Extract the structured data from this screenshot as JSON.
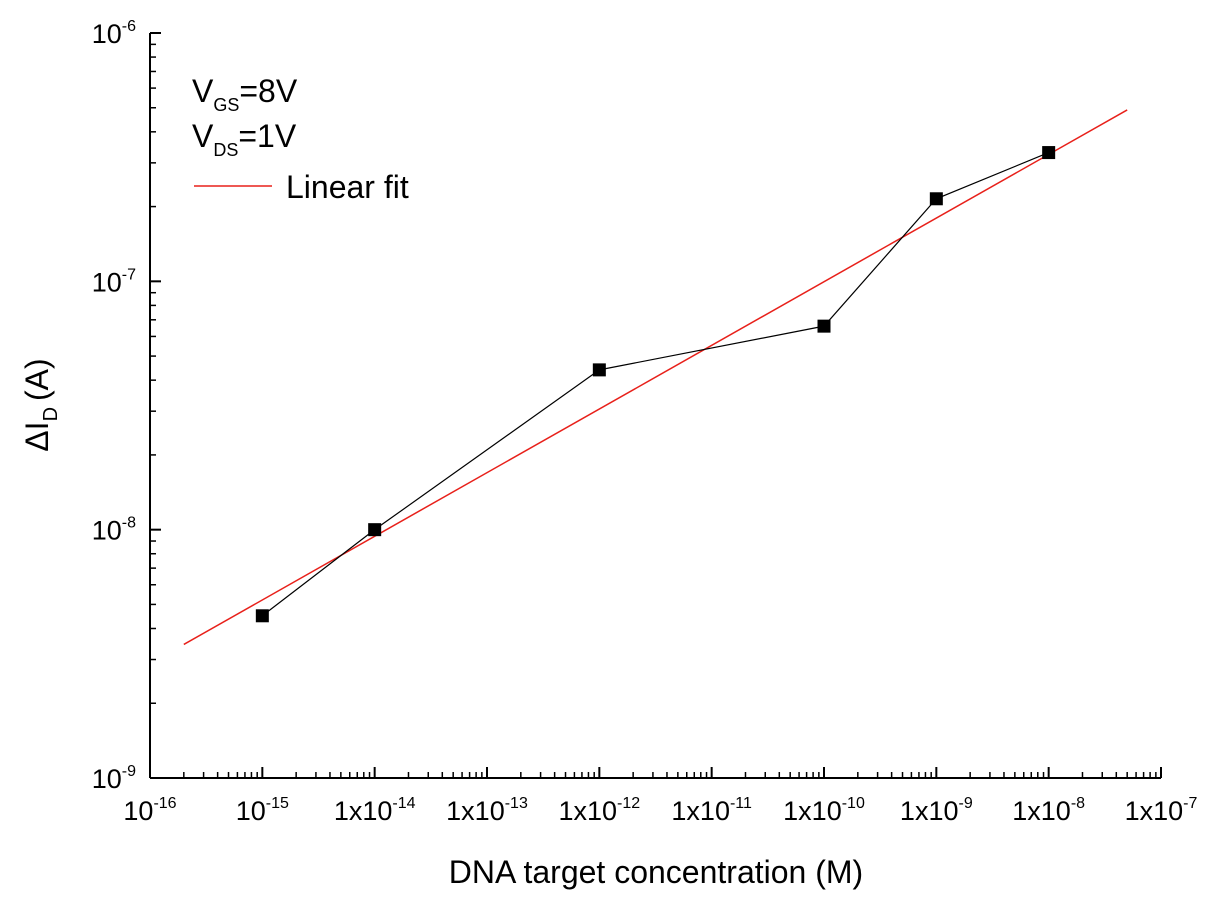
{
  "chart_data": {
    "type": "scatter",
    "xlabel": "DNA target concentration (M)",
    "ylabel_main": "ΔI",
    "ylabel_sub": "D",
    "ylabel_unit": "(A)",
    "x_scale": "log",
    "y_scale": "log",
    "xlim": [
      1e-16,
      1e-07
    ],
    "ylim": [
      1e-09,
      1e-06
    ],
    "grid": false,
    "x_tick_labels": [
      {
        "value": 1e-16,
        "base": "10",
        "exp": "-16"
      },
      {
        "value": 1e-15,
        "base": "10",
        "exp": "-15"
      },
      {
        "value": 1e-14,
        "base": "1x10",
        "exp": "-14"
      },
      {
        "value": 1e-13,
        "base": "1x10",
        "exp": "-13"
      },
      {
        "value": 1e-12,
        "base": "1x10",
        "exp": "-12"
      },
      {
        "value": 1e-11,
        "base": "1x10",
        "exp": "-11"
      },
      {
        "value": 1e-10,
        "base": "1x10",
        "exp": "-10"
      },
      {
        "value": 1e-09,
        "base": "1x10",
        "exp": "-9"
      },
      {
        "value": 1e-08,
        "base": "1x10",
        "exp": "-8"
      },
      {
        "value": 1e-07,
        "base": "1x10",
        "exp": "-7"
      }
    ],
    "y_tick_labels": [
      {
        "value": 1e-09,
        "base": "10",
        "exp": "-9"
      },
      {
        "value": 1e-08,
        "base": "10",
        "exp": "-8"
      },
      {
        "value": 1e-07,
        "base": "10",
        "exp": "-7"
      },
      {
        "value": 1e-06,
        "base": "10",
        "exp": "-6"
      }
    ],
    "series": [
      {
        "marker": "square",
        "color": "#000000",
        "x": [
          1e-15,
          1e-14,
          1e-12,
          1e-10,
          1e-09,
          1e-08
        ],
        "y": [
          4.5e-09,
          1e-08,
          4.4e-08,
          6.6e-08,
          2.15e-07,
          3.3e-07
        ]
      }
    ],
    "fit": {
      "name": "Linear fit",
      "color": "#e8201a",
      "x": [
        2e-16,
        5e-08
      ],
      "y": [
        3.45e-09,
        4.9e-07
      ]
    },
    "legend": {
      "position": "top-left",
      "lines": [
        {
          "main": "V",
          "sub": "GS",
          "rest": "=8V"
        },
        {
          "main": "V",
          "sub": "DS",
          "rest": "=1V"
        }
      ],
      "fit_label": "Linear fit"
    }
  }
}
